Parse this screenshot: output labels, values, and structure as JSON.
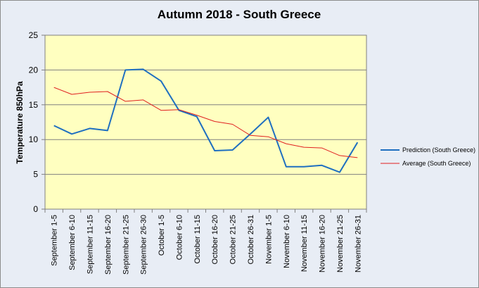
{
  "chart_data": {
    "type": "line",
    "title": "Autumn 2018 - South Greece",
    "xlabel": "",
    "ylabel": "Temperature 850hPa",
    "ylim": [
      0,
      25
    ],
    "yticks": [
      0,
      5,
      10,
      15,
      20,
      25
    ],
    "grid": true,
    "legend_position": "right",
    "plot_background": "#ffffc0",
    "categories": [
      "September 1-5",
      "September 6-10",
      "September 11-15",
      "September 16-20",
      "September 21-25",
      "September 26-30",
      "October 1-5",
      "October 6-10",
      "October 11-15",
      "October 16-20",
      "October 21-25",
      "October 26-31",
      "November 1-5",
      "November 6-10",
      "November 11-15",
      "November 16-20",
      "November 21-25",
      "November 26-31"
    ],
    "series": [
      {
        "name": "Prediction (South Greece)",
        "color": "#1f6fc0",
        "values": [
          12.0,
          10.8,
          11.6,
          11.3,
          20.0,
          20.1,
          18.4,
          14.2,
          13.3,
          8.4,
          8.5,
          10.8,
          13.2,
          6.1,
          6.1,
          6.3,
          5.3,
          9.6
        ]
      },
      {
        "name": "Average (South Greece)",
        "color": "#e02020",
        "values": [
          17.5,
          16.5,
          16.8,
          16.9,
          15.5,
          15.7,
          14.2,
          14.3,
          13.5,
          12.6,
          12.2,
          10.6,
          10.4,
          9.4,
          8.9,
          8.8,
          7.7,
          7.4
        ]
      }
    ]
  }
}
